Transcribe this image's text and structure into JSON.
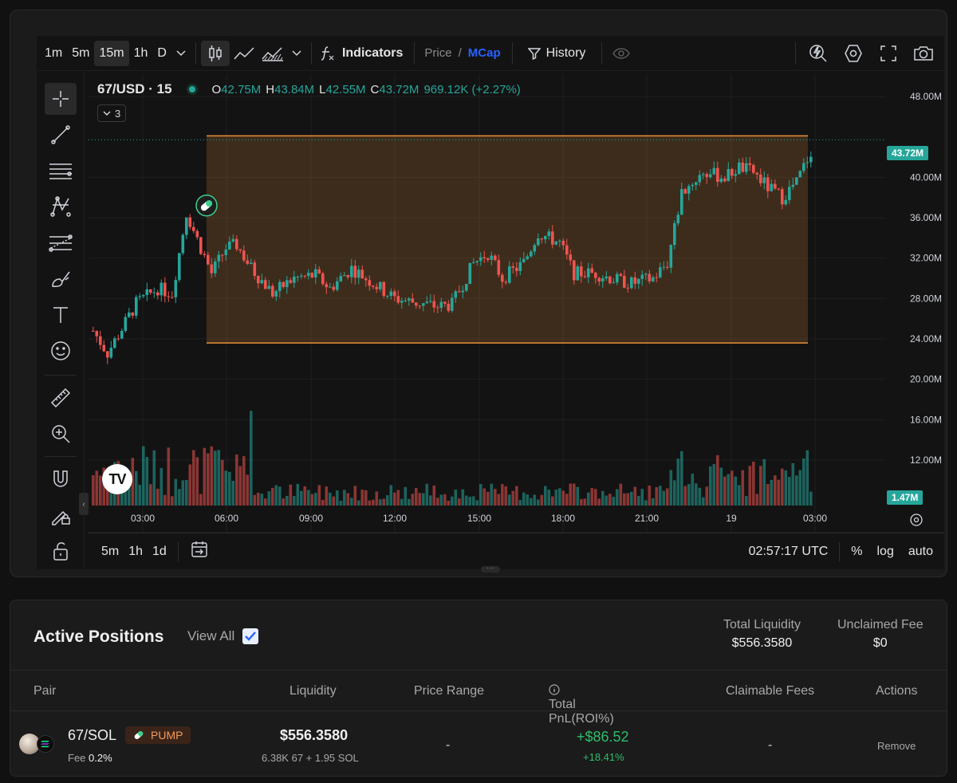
{
  "toolbar": {
    "intervals": [
      "1m",
      "5m",
      "15m",
      "1h",
      "D"
    ],
    "active_interval": "15m",
    "indicators_label": "Indicators",
    "price_label": "Price",
    "separator": "/",
    "mcap_label": "MCap",
    "history_label": "History"
  },
  "legend": {
    "symbol": "67/USD · 15",
    "o_key": "O",
    "o_val": "42.75M",
    "h_key": "H",
    "h_val": "43.84M",
    "l_key": "L",
    "l_val": "42.55M",
    "c_key": "C",
    "c_val": "43.72M",
    "change": "969.12K (+2.27%)",
    "collapse_count": "3"
  },
  "price_axis": {
    "labels": [
      "48.00M",
      "40.00M",
      "36.00M",
      "32.00M",
      "28.00M",
      "24.00M",
      "20.00M",
      "16.00M",
      "12.00M"
    ],
    "last_price_label": "43.72M",
    "volume_label": "1.47M"
  },
  "time_axis": {
    "labels": [
      "03:00",
      "06:00",
      "09:00",
      "12:00",
      "15:00",
      "18:00",
      "21:00",
      "19",
      "03:00"
    ]
  },
  "bottom_bar": {
    "ranges": [
      "5m",
      "1h",
      "1d"
    ],
    "clock": "02:57:17 UTC",
    "percent": "%",
    "log": "log",
    "auto": "auto"
  },
  "colors": {
    "up": "#26a69a",
    "down": "#ef5350",
    "range_box": "#e8913a",
    "accent": "#2962ff"
  },
  "positions": {
    "title": "Active Positions",
    "view_all": "View All",
    "total_liquidity_label": "Total Liquidity",
    "total_liquidity_value": "$556.3580",
    "unclaimed_fee_label": "Unclaimed Fee",
    "unclaimed_fee_value": "$0",
    "columns": {
      "pair": "Pair",
      "liquidity": "Liquidity",
      "price_range": "Price Range",
      "pnl": "Total PnL(ROI%)",
      "claimable": "Claimable Fees",
      "actions": "Actions"
    },
    "rows": [
      {
        "pair": "67/SOL",
        "badge": "PUMP",
        "fee_label": "Fee",
        "fee_value": "0.2%",
        "liquidity": "$556.3580",
        "liquidity_detail": "6.38K 67 + 1.95 SOL",
        "price_range": "-",
        "pnl": "+$86.52",
        "roi": "+18.41%",
        "claimable": "-",
        "action": "Remove"
      }
    ]
  }
}
